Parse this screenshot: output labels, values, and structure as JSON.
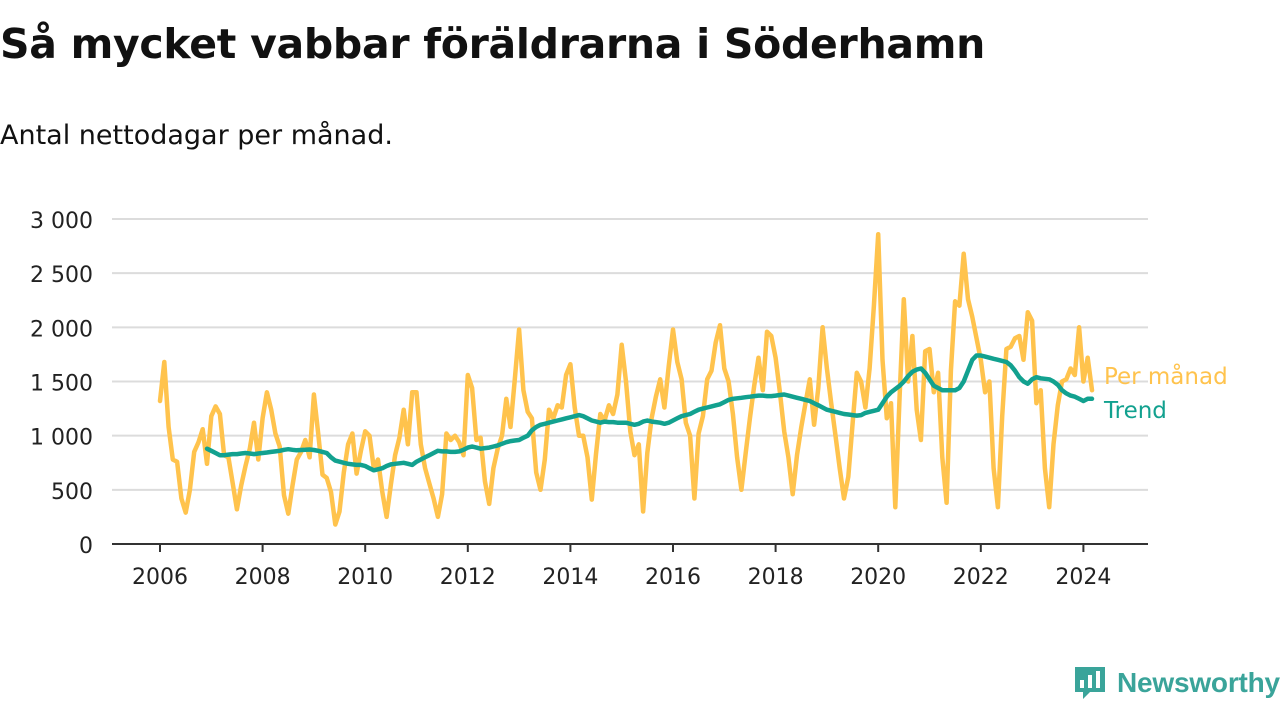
{
  "header": {
    "title": "Så mycket vabbar föräldrarna i Söderhamn",
    "subtitle": "Antal nettodagar per månad."
  },
  "brand": {
    "name": "Newsworthy",
    "icon": "newsworthy-logo-icon",
    "color": "#3aa49a"
  },
  "colors": {
    "monthly": "#ffc34d",
    "trend": "#12a18f",
    "grid": "#dcdcdc",
    "axis": "#333333"
  },
  "chart_data": {
    "type": "line",
    "title": "Så mycket vabbar föräldrarna i Söderhamn",
    "subtitle": "Antal nettodagar per månad.",
    "xlabel": "",
    "ylabel": "",
    "xlim": [
      2006,
      2025.2
    ],
    "ylim": [
      0,
      3000
    ],
    "x_ticks": [
      2006,
      2008,
      2010,
      2012,
      2014,
      2016,
      2018,
      2020,
      2022,
      2024
    ],
    "x_tick_labels": [
      "2006",
      "2008",
      "2010",
      "2012",
      "2014",
      "2016",
      "2018",
      "2020",
      "2022",
      "2024"
    ],
    "y_ticks": [
      0,
      500,
      1000,
      1500,
      2000,
      2500,
      3000
    ],
    "y_tick_labels": [
      "0",
      "500",
      "1 000",
      "1 500",
      "2 000",
      "2 500",
      "3 000"
    ],
    "grid": true,
    "legend": "inline labels at line ends (right)",
    "series": [
      {
        "name": "Per månad",
        "color": "#ffc34d",
        "x_start": 2006.0,
        "x_step_months": 1,
        "values": [
          1320,
          1680,
          1080,
          780,
          760,
          420,
          290,
          500,
          850,
          940,
          1060,
          740,
          1180,
          1270,
          1200,
          820,
          800,
          560,
          320,
          540,
          720,
          880,
          1120,
          780,
          1160,
          1400,
          1240,
          1020,
          900,
          450,
          280,
          540,
          780,
          850,
          960,
          800,
          1380,
          1020,
          640,
          610,
          480,
          180,
          300,
          660,
          920,
          1020,
          650,
          860,
          1040,
          1000,
          700,
          780,
          480,
          250,
          550,
          820,
          980,
          1240,
          920,
          1400,
          1400,
          920,
          700,
          560,
          420,
          250,
          460,
          1020,
          960,
          1000,
          940,
          820,
          1560,
          1440,
          960,
          980,
          580,
          370,
          700,
          880,
          1000,
          1340,
          1080,
          1520,
          1980,
          1420,
          1220,
          1160,
          660,
          500,
          780,
          1240,
          1160,
          1280,
          1260,
          1560,
          1660,
          1260,
          1000,
          1000,
          800,
          410,
          830,
          1200,
          1140,
          1280,
          1200,
          1380,
          1840,
          1500,
          1040,
          820,
          920,
          300,
          840,
          1160,
          1360,
          1520,
          1260,
          1640,
          1980,
          1680,
          1520,
          1120,
          1000,
          420,
          1020,
          1180,
          1520,
          1600,
          1860,
          2020,
          1620,
          1500,
          1200,
          800,
          500,
          840,
          1160,
          1460,
          1720,
          1420,
          1960,
          1920,
          1720,
          1400,
          1040,
          800,
          460,
          820,
          1080,
          1300,
          1520,
          1100,
          1440,
          2000,
          1620,
          1300,
          1000,
          700,
          420,
          620,
          1100,
          1580,
          1500,
          1260,
          1620,
          2200,
          2860,
          1700,
          1160,
          1300,
          340,
          1360,
          2260,
          1500,
          1920,
          1240,
          960,
          1780,
          1800,
          1400,
          1580,
          800,
          380,
          1600,
          2240,
          2200,
          2680,
          2260,
          2100,
          1900,
          1700,
          1400,
          1500,
          700,
          340,
          1180,
          1800,
          1820,
          1900,
          1920,
          1700,
          2140,
          2060,
          1300,
          1420,
          700,
          340,
          920,
          1280,
          1500,
          1520,
          1620,
          1560,
          2000,
          1500,
          1720,
          1420
        ]
      },
      {
        "name": "Trend",
        "color": "#12a18f",
        "x_start": 2006.917,
        "x_step_months": 1,
        "values": [
          880,
          860,
          840,
          820,
          820,
          825,
          830,
          830,
          835,
          840,
          835,
          830,
          835,
          840,
          845,
          850,
          855,
          860,
          870,
          875,
          870,
          865,
          868,
          870,
          872,
          868,
          860,
          850,
          840,
          800,
          770,
          760,
          750,
          740,
          735,
          730,
          730,
          720,
          700,
          680,
          690,
          700,
          720,
          735,
          740,
          745,
          750,
          740,
          730,
          760,
          780,
          800,
          820,
          840,
          860,
          855,
          855,
          850,
          850,
          855,
          870,
          890,
          900,
          890,
          880,
          885,
          890,
          900,
          910,
          925,
          940,
          950,
          955,
          960,
          980,
          1000,
          1050,
          1080,
          1100,
          1110,
          1120,
          1130,
          1140,
          1150,
          1160,
          1170,
          1180,
          1190,
          1180,
          1160,
          1140,
          1130,
          1120,
          1130,
          1125,
          1125,
          1120,
          1120,
          1120,
          1110,
          1100,
          1110,
          1130,
          1140,
          1130,
          1125,
          1120,
          1110,
          1120,
          1140,
          1160,
          1180,
          1190,
          1200,
          1220,
          1240,
          1250,
          1260,
          1270,
          1280,
          1290,
          1310,
          1330,
          1340,
          1345,
          1350,
          1355,
          1360,
          1365,
          1370,
          1370,
          1365,
          1365,
          1370,
          1375,
          1380,
          1370,
          1360,
          1350,
          1340,
          1330,
          1320,
          1300,
          1280,
          1260,
          1240,
          1230,
          1220,
          1210,
          1200,
          1195,
          1190,
          1185,
          1190,
          1210,
          1220,
          1230,
          1240,
          1300,
          1360,
          1400,
          1430,
          1460,
          1500,
          1550,
          1590,
          1610,
          1620,
          1580,
          1520,
          1460,
          1440,
          1420,
          1420,
          1420,
          1420,
          1440,
          1500,
          1600,
          1700,
          1740,
          1740,
          1730,
          1720,
          1710,
          1700,
          1690,
          1680,
          1650,
          1600,
          1540,
          1500,
          1480,
          1520,
          1540,
          1530,
          1525,
          1520,
          1500,
          1470,
          1420,
          1390,
          1370,
          1360,
          1340,
          1320,
          1340,
          1340
        ]
      }
    ]
  }
}
